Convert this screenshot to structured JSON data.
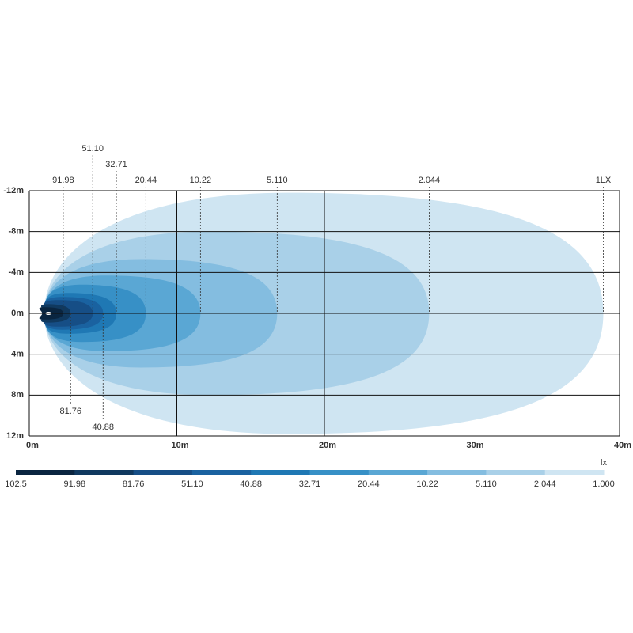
{
  "chart_data": {
    "type": "isolux",
    "xlim": [
      0,
      40
    ],
    "xticks": [
      {
        "value": 0,
        "label": "0m"
      },
      {
        "value": 10,
        "label": "10m"
      },
      {
        "value": 20,
        "label": "20m"
      },
      {
        "value": 30,
        "label": "30m"
      },
      {
        "value": 40,
        "label": "40m"
      }
    ],
    "ylim": [
      -12,
      12
    ],
    "yticks": [
      {
        "value": -12,
        "label": "-12m"
      },
      {
        "value": -8,
        "label": "-8m"
      },
      {
        "value": -4,
        "label": "-4m"
      },
      {
        "value": 0,
        "label": "0m"
      },
      {
        "value": 4,
        "label": "4m"
      },
      {
        "value": 8,
        "label": "8m"
      },
      {
        "value": 12,
        "label": "12m"
      }
    ],
    "grid": true,
    "contours": [
      {
        "level": {
          "value": 1,
          "label": "1LX"
        },
        "x": 38.9,
        "width": 11.8,
        "color": "#cfe5f2",
        "label_side": "top"
      },
      {
        "level": 2.044,
        "x": 27.1,
        "width": 8.0,
        "color": "#a9d0e8",
        "label_side": "top"
      },
      {
        "level": {
          "value": 5.11,
          "label": "5.110"
        },
        "x": 16.8,
        "width": 5.3,
        "color": "#84bde0",
        "label_side": "top"
      },
      {
        "level": 10.22,
        "x": 11.6,
        "width": 3.7,
        "color": "#5aa7d4",
        "label_side": "top"
      },
      {
        "level": 20.44,
        "x": 7.9,
        "width": 2.8,
        "color": "#3790c6",
        "label_side": "top"
      },
      {
        "level": 32.71,
        "x": 5.9,
        "width": 2.0,
        "color": "#1f78b4",
        "label_side": "top"
      },
      {
        "level": 40.88,
        "x": 5.0,
        "width": 1.6,
        "color": "#1a62a0",
        "label_side": "bottom"
      },
      {
        "level": {
          "value": 51.1,
          "label": "51.10"
        },
        "x": 4.3,
        "width": 1.3,
        "color": "#164e86",
        "label_side": "top"
      },
      {
        "level": 81.76,
        "x": 2.8,
        "width": 0.9,
        "color": "#10395f",
        "label_side": "bottom"
      },
      {
        "level": 91.98,
        "x": 2.3,
        "width": 0.6,
        "color": "#0a2540",
        "label_side": "top"
      }
    ],
    "colorbar": {
      "unit": "lx",
      "stops": [
        102.5,
        91.98,
        81.76,
        {
          "value": 51.1,
          "label": "51.10"
        },
        40.88,
        32.71,
        20.44,
        10.22,
        {
          "value": 5.11,
          "label": "5.110"
        },
        2.044,
        {
          "value": 1,
          "label": "1.000"
        }
      ]
    }
  }
}
